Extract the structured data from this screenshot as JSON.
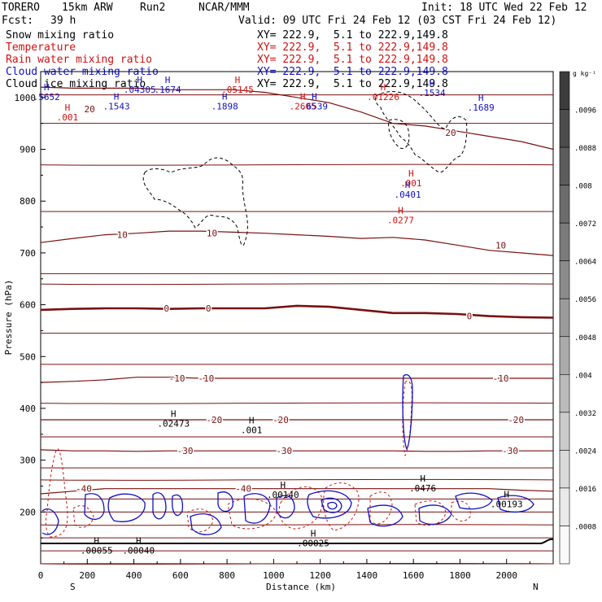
{
  "header": {
    "model": "TORERO",
    "resolution": "15km ARW",
    "run": "Run2",
    "org": "NCAR/MMM",
    "init": "Init: 18 UTC Wed 22 Feb 12",
    "fcst_label": "Fcst:",
    "fcst_value": "39 h",
    "valid": "Valid: 09 UTC Fri 24 Feb 12 (03 CST Fri 24 Feb 12)"
  },
  "fields": [
    {
      "name": "Snow mixing ratio",
      "color": "#000000",
      "xy": "XY= 222.9,  5.1 to 222.9,149.8"
    },
    {
      "name": "Temperature",
      "color": "#d01010",
      "xy": "XY= 222.9,  5.1 to 222.9,149.8"
    },
    {
      "name": "Rain water mixing ratio",
      "color": "#d01010",
      "xy": "XY= 222.9,  5.1 to 222.9,149.8"
    },
    {
      "name": "Cloud water mixing ratio",
      "color": "#1010c0",
      "xy": "XY= 222.9,  5.1 to 222.9,149.8"
    },
    {
      "name": "Cloud ice mixing ratio",
      "color": "#000000",
      "xy": "XY= 222.9,  5.1 to 222.9,149.8"
    }
  ],
  "chart_data": {
    "type": "contour",
    "xlabel": "Distance (km)",
    "ylabel": "Pressure (hPa)",
    "xlim": [
      0,
      2200
    ],
    "ylim": [
      1050,
      100
    ],
    "x_ticks": [
      0,
      200,
      400,
      600,
      800,
      1000,
      1200,
      1400,
      1600,
      1800,
      2000
    ],
    "y_ticks": [
      200,
      300,
      400,
      500,
      600,
      700,
      800,
      900,
      1000
    ],
    "x_end_labels": {
      "left": "S",
      "right": "N"
    },
    "colorbar": {
      "unit": "g kg⁻¹",
      "ticks": [
        ".0096",
        ".0088",
        ".008",
        ".0072",
        ".0064",
        ".0056",
        ".0048",
        ".004",
        ".0032",
        ".0024",
        ".0016",
        ".0008"
      ]
    },
    "temperature_contours": {
      "color": "#7a1010",
      "interval_c": 5,
      "isotherms": [
        {
          "value": -40,
          "pressures": [
            235,
            240,
            245,
            245,
            245,
            245,
            245,
            245,
            245,
            245,
            245,
            245,
            245,
            245,
            245,
            242,
            240
          ]
        },
        {
          "value": -30,
          "pressures": [
            320,
            318,
            318,
            317,
            318,
            318,
            318,
            318,
            318,
            318,
            318,
            318,
            317,
            317,
            318,
            318,
            318
          ]
        },
        {
          "value": -20,
          "pressures": [
            378,
            378,
            378,
            378,
            378,
            378,
            378,
            378,
            378,
            378,
            378,
            378,
            378,
            378,
            378,
            378,
            378
          ]
        },
        {
          "value": -10,
          "pressures": [
            450,
            452,
            455,
            460,
            460,
            458,
            458,
            458,
            458,
            458,
            458,
            458,
            458,
            458,
            458,
            458,
            458
          ]
        },
        {
          "value": 0,
          "pressures": [
            590,
            592,
            593,
            593,
            592,
            593,
            593,
            593,
            598,
            596,
            590,
            584,
            584,
            582,
            578,
            576,
            575
          ]
        },
        {
          "value": 10,
          "pressures": [
            720,
            728,
            735,
            738,
            742,
            742,
            740,
            738,
            735,
            732,
            728,
            730,
            725,
            715,
            705,
            700,
            695
          ]
        },
        {
          "value": 20,
          "pressures": [
            1020,
            1018,
            1018,
            1018,
            1015,
            1015,
            1015,
            1010,
            1000,
            990,
            972,
            950,
            945,
            935,
            925,
            915,
            900
          ]
        }
      ],
      "labels": [
        {
          "text": "-40",
          "x": 185,
          "p": 245
        },
        {
          "text": "-40",
          "x": 870,
          "p": 245
        },
        {
          "text": "-30",
          "x": 620,
          "p": 318
        },
        {
          "text": "-30",
          "x": 1045,
          "p": 318
        },
        {
          "text": "-30",
          "x": 2015,
          "p": 318
        },
        {
          "text": "-20",
          "x": 745,
          "p": 378
        },
        {
          "text": "-20",
          "x": 1030,
          "p": 378
        },
        {
          "text": "-20",
          "x": 2040,
          "p": 378
        },
        {
          "text": "-10",
          "x": 585,
          "p": 458
        },
        {
          "text": "-10",
          "x": 710,
          "p": 458
        },
        {
          "text": "-10",
          "x": 1975,
          "p": 458
        },
        {
          "text": "0",
          "x": 540,
          "p": 593
        },
        {
          "text": "0",
          "x": 720,
          "p": 593
        },
        {
          "text": "0",
          "x": 1840,
          "p": 578
        },
        {
          "text": "10",
          "x": 350,
          "p": 735
        },
        {
          "text": "10",
          "x": 735,
          "p": 738
        },
        {
          "text": "10",
          "x": 1975,
          "p": 715
        },
        {
          "text": "20",
          "x": 1760,
          "p": 932
        },
        {
          "text": "20",
          "x": 210,
          "p": 978
        }
      ]
    },
    "max_labels": [
      {
        "text": ".00055",
        "x": 240,
        "p": 123,
        "color": "#000000"
      },
      {
        "text": ".00040",
        "x": 420,
        "p": 123,
        "color": "#000000"
      },
      {
        "text": ".00025",
        "x": 1170,
        "p": 137,
        "color": "#000000"
      },
      {
        "text": ".00140",
        "x": 1040,
        "p": 230,
        "color": "#000000"
      },
      {
        "text": ".0476",
        "x": 1640,
        "p": 243,
        "color": "#000000"
      },
      {
        "text": ".00193",
        "x": 2000,
        "p": 212,
        "color": "#000000"
      },
      {
        "text": ".02473",
        "x": 570,
        "p": 368,
        "color": "#000000"
      },
      {
        "text": ".001",
        "x": 905,
        "p": 355,
        "color": "#000000"
      },
      {
        "text": ".0277",
        "x": 1545,
        "p": 760,
        "color": "#d01010"
      },
      {
        "text": ".0401",
        "x": 1575,
        "p": 810,
        "color": "#1010c0"
      },
      {
        "text": ".001",
        "x": 1590,
        "p": 832,
        "color": "#d01010"
      },
      {
        "text": ".001",
        "x": 115,
        "p": 959,
        "color": "#d01010"
      },
      {
        "text": ".1543",
        "x": 325,
        "p": 980,
        "color": "#1010c0"
      },
      {
        "text": ".1898",
        "x": 790,
        "p": 980,
        "color": "#1010c0"
      },
      {
        "text": ".2605",
        "x": 1125,
        "p": 980,
        "color": "#d01010"
      },
      {
        "text": ".6539",
        "x": 1175,
        "p": 980,
        "color": "#1010c0"
      },
      {
        "text": ".5652",
        "x": 25,
        "p": 998,
        "color": "#1010c0"
      },
      {
        "text": ".04305",
        "x": 425,
        "p": 1012,
        "color": "#1010c0"
      },
      {
        "text": ".1674",
        "x": 545,
        "p": 1012,
        "color": "#1010c0"
      },
      {
        "text": ".05145",
        "x": 845,
        "p": 1012,
        "color": "#d01010"
      },
      {
        "text": ".01226",
        "x": 1470,
        "p": 998,
        "color": "#d01010"
      },
      {
        "text": ".1534",
        "x": 1680,
        "p": 1006,
        "color": "#1010c0"
      },
      {
        "text": ".1689",
        "x": 1890,
        "p": 978,
        "color": "#1010c0"
      }
    ]
  }
}
